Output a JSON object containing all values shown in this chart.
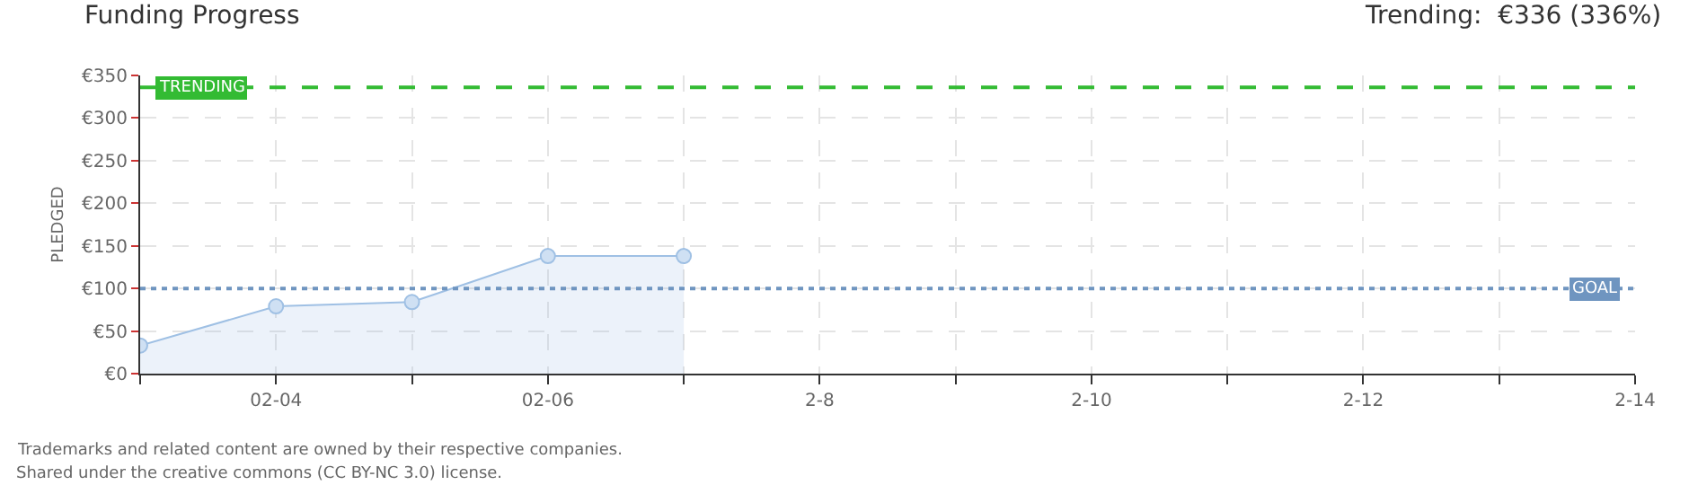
{
  "chart_data": {
    "type": "area",
    "title": "Funding Progress",
    "subtitle": "Trending:  €336 (336%)",
    "ylabel": "PLEDGED",
    "x": [
      "--02-03",
      "--02-04",
      "--02-05",
      "--02-06",
      "--02-07"
    ],
    "series": [
      {
        "color": "#9fc0e4",
        "values": [
          33,
          79,
          84,
          138,
          138
        ]
      }
    ],
    "xlim": [
      "--02-03",
      "--02-14"
    ],
    "xticks": [
      {
        "value": "--02-03",
        "label": null
      },
      {
        "value": "--02-04",
        "label": "02-04"
      },
      {
        "value": "--02-05",
        "label": null
      },
      {
        "value": "--02-06",
        "label": "02-06"
      },
      {
        "value": "--02-07",
        "label": null
      },
      {
        "value": "--02-08",
        "label": "2-8"
      },
      {
        "value": "--02-09",
        "label": null
      },
      {
        "value": "--02-10",
        "label": "2-10"
      },
      {
        "value": "--02-11",
        "label": null
      },
      {
        "value": "--02-12",
        "label": "2-12"
      },
      {
        "value": "--02-13",
        "label": null
      },
      {
        "value": "--02-14",
        "label": "2-14"
      }
    ],
    "ylim": [
      0,
      350
    ],
    "yticks": [
      {
        "value": 0,
        "label": "€0"
      },
      {
        "value": 50,
        "label": "€50"
      },
      {
        "value": 100,
        "label": "€100"
      },
      {
        "value": 150,
        "label": "€150"
      },
      {
        "value": 200,
        "label": "€200"
      },
      {
        "value": 250,
        "label": "€250"
      },
      {
        "value": 300,
        "label": "€300"
      },
      {
        "value": 350,
        "label": "€350"
      }
    ],
    "ref_lines": [
      {
        "axis": "y",
        "value": 336,
        "label": "TRENDING",
        "color": "#33bb33",
        "line_style": "dashed"
      },
      {
        "axis": "y",
        "value": 100,
        "label": "GOAL",
        "color": "#6f95c0",
        "line_style": "dotted"
      }
    ],
    "grid": true,
    "marker": "circle",
    "line_style": "solid",
    "annotations": [
      "Trademarks and related content are owned by their respective companies.",
      "Shared under the creative commons (CC BY-NC 3.0) license."
    ]
  }
}
